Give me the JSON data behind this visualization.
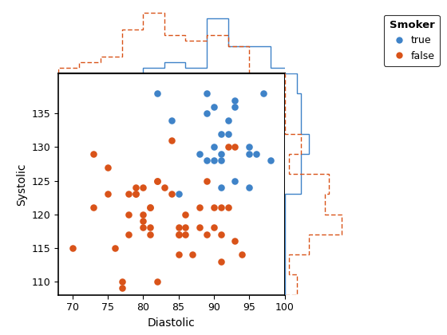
{
  "blue_x": [
    82,
    89,
    88,
    91,
    92,
    93,
    90,
    91,
    90,
    89,
    91,
    93,
    90,
    89,
    92,
    95,
    97,
    95,
    96,
    84,
    93,
    85,
    91,
    95,
    98
  ],
  "blue_y": [
    138,
    138,
    129,
    132,
    132,
    137,
    130,
    129,
    128,
    128,
    128,
    136,
    136,
    135,
    134,
    130,
    138,
    129,
    129,
    134,
    125,
    123,
    124,
    124,
    128
  ],
  "orange_x": [
    70,
    73,
    73,
    75,
    75,
    76,
    77,
    78,
    78,
    78,
    79,
    79,
    79,
    80,
    80,
    80,
    80,
    81,
    81,
    81,
    81,
    82,
    82,
    83,
    84,
    84,
    85,
    85,
    85,
    85,
    86,
    86,
    86,
    87,
    88,
    88,
    89,
    89,
    90,
    90,
    91,
    91,
    91,
    92,
    92,
    93,
    93,
    94,
    77,
    82
  ],
  "orange_y": [
    115,
    121,
    129,
    127,
    123,
    115,
    109,
    120,
    117,
    123,
    124,
    123,
    123,
    119,
    118,
    120,
    124,
    121,
    117,
    118,
    121,
    125,
    125,
    124,
    123,
    131,
    117,
    117,
    118,
    114,
    117,
    118,
    120,
    114,
    118,
    121,
    125,
    117,
    121,
    118,
    113,
    117,
    121,
    121,
    130,
    116,
    130,
    114,
    110,
    110
  ],
  "blue_color": "#3f83c8",
  "orange_color": "#d95319",
  "hist_bins_x": [
    68,
    71,
    74,
    77,
    80,
    83,
    86,
    89,
    92,
    95,
    98,
    101
  ],
  "hist_bins_y": [
    108,
    111,
    114,
    117,
    120,
    123,
    126,
    129,
    132,
    135,
    138,
    141
  ],
  "xlabel": "Diastolic",
  "ylabel": "Systolic",
  "legend_title": "Smoker",
  "legend_true": "true",
  "legend_false": "false",
  "scatter_xlim": [
    68,
    100
  ],
  "scatter_ylim": [
    108,
    141
  ],
  "xticks": [
    70,
    75,
    80,
    85,
    90,
    95,
    100
  ],
  "yticks": [
    110,
    115,
    120,
    125,
    130,
    135
  ]
}
